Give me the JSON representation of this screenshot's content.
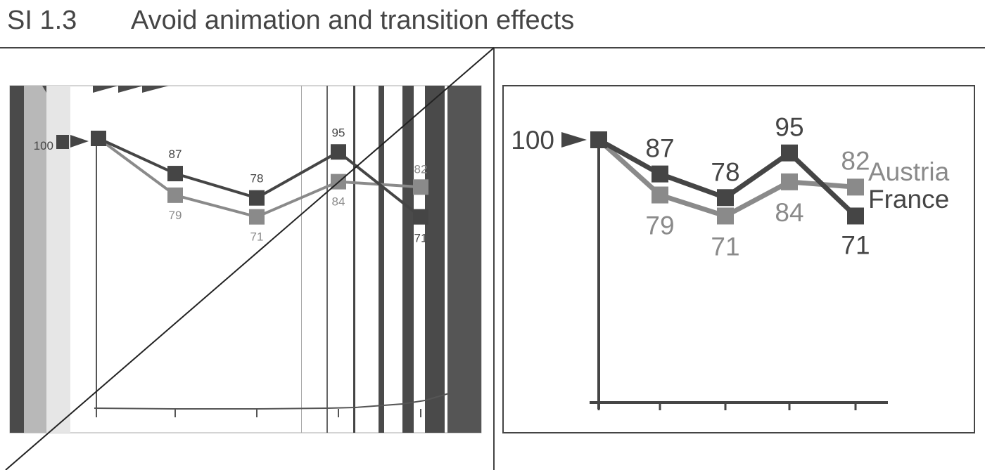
{
  "page": {
    "code": "SI 1.3",
    "heading": "Avoid animation and transition effects"
  },
  "colors": {
    "france": "#454545",
    "austria": "#8a8a8a",
    "frame": "#444444"
  },
  "chart_data": [
    {
      "panel": "distorted-transition-frame",
      "type": "line",
      "start_value": 100,
      "start_label": "100",
      "series": [
        {
          "name": "Austria",
          "values": [
            100,
            79,
            71,
            84,
            82
          ],
          "labels": [
            "",
            "79",
            "71",
            "84",
            "82"
          ]
        },
        {
          "name": "France",
          "values": [
            100,
            87,
            78,
            95,
            71
          ],
          "labels": [
            "",
            "87",
            "78",
            "95",
            "71"
          ]
        }
      ],
      "grid": false
    },
    {
      "panel": "final-chart",
      "type": "line",
      "start_value": 100,
      "start_label": "100",
      "series": [
        {
          "name": "Austria",
          "values": [
            100,
            79,
            71,
            84,
            82
          ],
          "labels": [
            "",
            "79",
            "71",
            "84",
            "82"
          ]
        },
        {
          "name": "France",
          "values": [
            100,
            87,
            78,
            95,
            71
          ],
          "labels": [
            "",
            "87",
            "78",
            "95",
            "71"
          ]
        }
      ],
      "ylim": [
        0,
        100
      ],
      "grid": false,
      "legend": "right-end-of-lines"
    }
  ]
}
